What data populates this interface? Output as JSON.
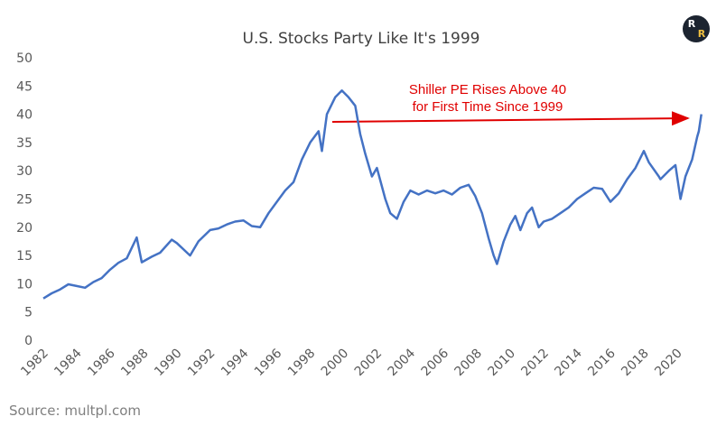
{
  "chart_data": {
    "type": "line",
    "title": "U.S. Stocks Party Like It's 1999",
    "annotation": [
      "Shiller PE Rises Above 40",
      "for First Time Since 1999"
    ],
    "source": "Source:  multpl.com",
    "logo": [
      "R",
      "R"
    ],
    "x": [
      1982.0,
      1982.5,
      1983.0,
      1983.5,
      1984.0,
      1984.5,
      1985.0,
      1985.5,
      1986.0,
      1986.5,
      1987.0,
      1987.6,
      1987.9,
      1988.5,
      1989.0,
      1989.7,
      1990.0,
      1990.8,
      1991.3,
      1992.0,
      1992.5,
      1993.0,
      1993.5,
      1994.0,
      1994.5,
      1995.0,
      1995.5,
      1996.0,
      1996.5,
      1997.0,
      1997.5,
      1998.0,
      1998.5,
      1998.7,
      1999.0,
      1999.5,
      1999.9,
      2000.3,
      2000.7,
      2001.0,
      2001.3,
      2001.7,
      2002.0,
      2002.5,
      2002.8,
      2003.2,
      2003.6,
      2004.0,
      2004.5,
      2005.0,
      2005.5,
      2006.0,
      2006.5,
      2007.0,
      2007.5,
      2007.9,
      2008.3,
      2008.7,
      2009.0,
      2009.2,
      2009.6,
      2010.0,
      2010.3,
      2010.6,
      2011.0,
      2011.3,
      2011.7,
      2012.0,
      2012.5,
      2013.0,
      2013.5,
      2014.0,
      2014.5,
      2015.0,
      2015.5,
      2016.0,
      2016.5,
      2017.0,
      2017.5,
      2018.0,
      2018.3,
      2018.9,
      2019.0,
      2019.5,
      2019.9,
      2020.2,
      2020.5,
      2020.9,
      2021.2,
      2021.3,
      2021.45
    ],
    "series": [
      {
        "name": "Shiller PE",
        "color": "#4472c4",
        "values": [
          7.4,
          8.3,
          9.0,
          9.9,
          9.6,
          9.3,
          10.3,
          11.0,
          12.5,
          13.7,
          14.5,
          18.2,
          13.8,
          14.8,
          15.5,
          17.8,
          17.2,
          15.0,
          17.5,
          19.5,
          19.8,
          20.5,
          21.0,
          21.2,
          20.2,
          20.0,
          22.5,
          24.5,
          26.5,
          28.0,
          32.0,
          35.0,
          37.0,
          33.5,
          40.0,
          43.0,
          44.2,
          43.0,
          41.5,
          36.5,
          33.0,
          29.0,
          30.5,
          25.0,
          22.5,
          21.5,
          24.5,
          26.5,
          25.8,
          26.5,
          26.0,
          26.5,
          25.8,
          27.0,
          27.5,
          25.5,
          22.5,
          18.0,
          15.0,
          13.5,
          17.5,
          20.5,
          22.0,
          19.5,
          22.5,
          23.5,
          20.0,
          21.0,
          21.5,
          22.5,
          23.5,
          25.0,
          26.0,
          27.0,
          26.8,
          24.5,
          26.0,
          28.5,
          30.5,
          33.5,
          31.5,
          29.0,
          28.5,
          30.0,
          31.0,
          25.0,
          29.0,
          32.0,
          36.0,
          37.0,
          40.0
        ]
      }
    ],
    "xlim": [
      1982,
      2021.5
    ],
    "xticks": [
      1982,
      1984,
      1986,
      1988,
      1990,
      1992,
      1994,
      1996,
      1998,
      2000,
      2002,
      2004,
      2006,
      2008,
      2010,
      2012,
      2014,
      2016,
      2018,
      2020
    ],
    "ylim": [
      0,
      50
    ],
    "yticks": [
      0,
      5,
      10,
      15,
      20,
      25,
      30,
      35,
      40,
      45,
      50
    ],
    "grid": false
  }
}
